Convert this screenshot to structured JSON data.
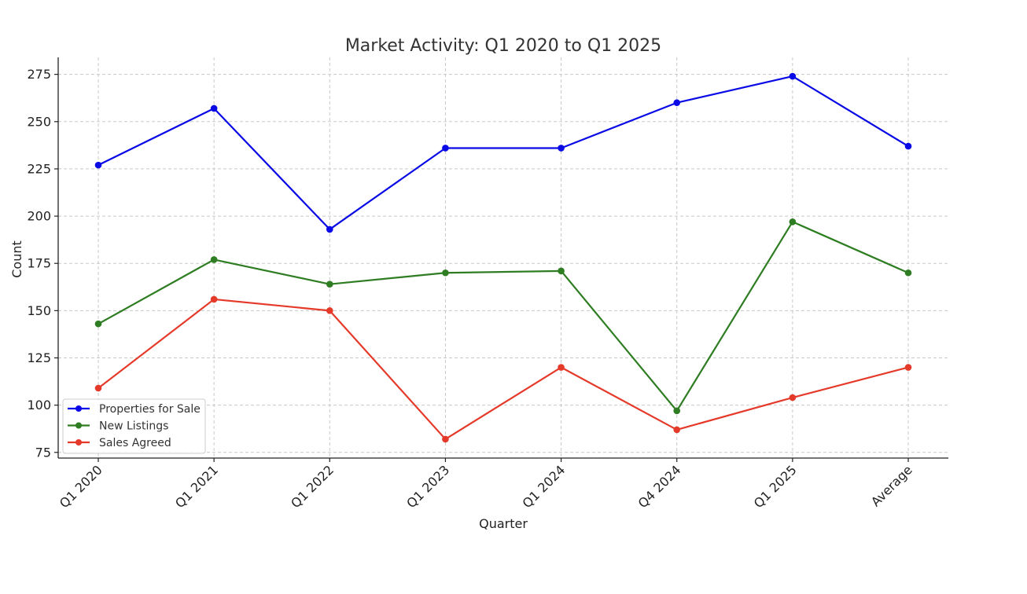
{
  "chart_data": {
    "type": "line",
    "title": "Market Activity: Q1 2020 to Q1 2025",
    "xlabel": "Quarter",
    "ylabel": "Count",
    "categories": [
      "Q1 2020",
      "Q1 2021",
      "Q1 2022",
      "Q1 2023",
      "Q1 2024",
      "Q4 2024",
      "Q1 2025",
      "Average"
    ],
    "ylim": [
      72,
      284
    ],
    "yticks": [
      75,
      100,
      125,
      150,
      175,
      200,
      225,
      250,
      275
    ],
    "grid": true,
    "legend_position": "bottom-left",
    "series": [
      {
        "name": "Properties for Sale",
        "color": "#0a0ae6",
        "values": [
          227,
          257,
          193,
          236,
          236,
          260,
          274,
          237
        ]
      },
      {
        "name": "New Listings",
        "color": "#2e7d22",
        "values": [
          143,
          177,
          164,
          170,
          171,
          97,
          197,
          170
        ]
      },
      {
        "name": "Sales Agreed",
        "color": "#e53a2a",
        "values": [
          109,
          156,
          150,
          82,
          120,
          87,
          104,
          120
        ]
      }
    ]
  }
}
